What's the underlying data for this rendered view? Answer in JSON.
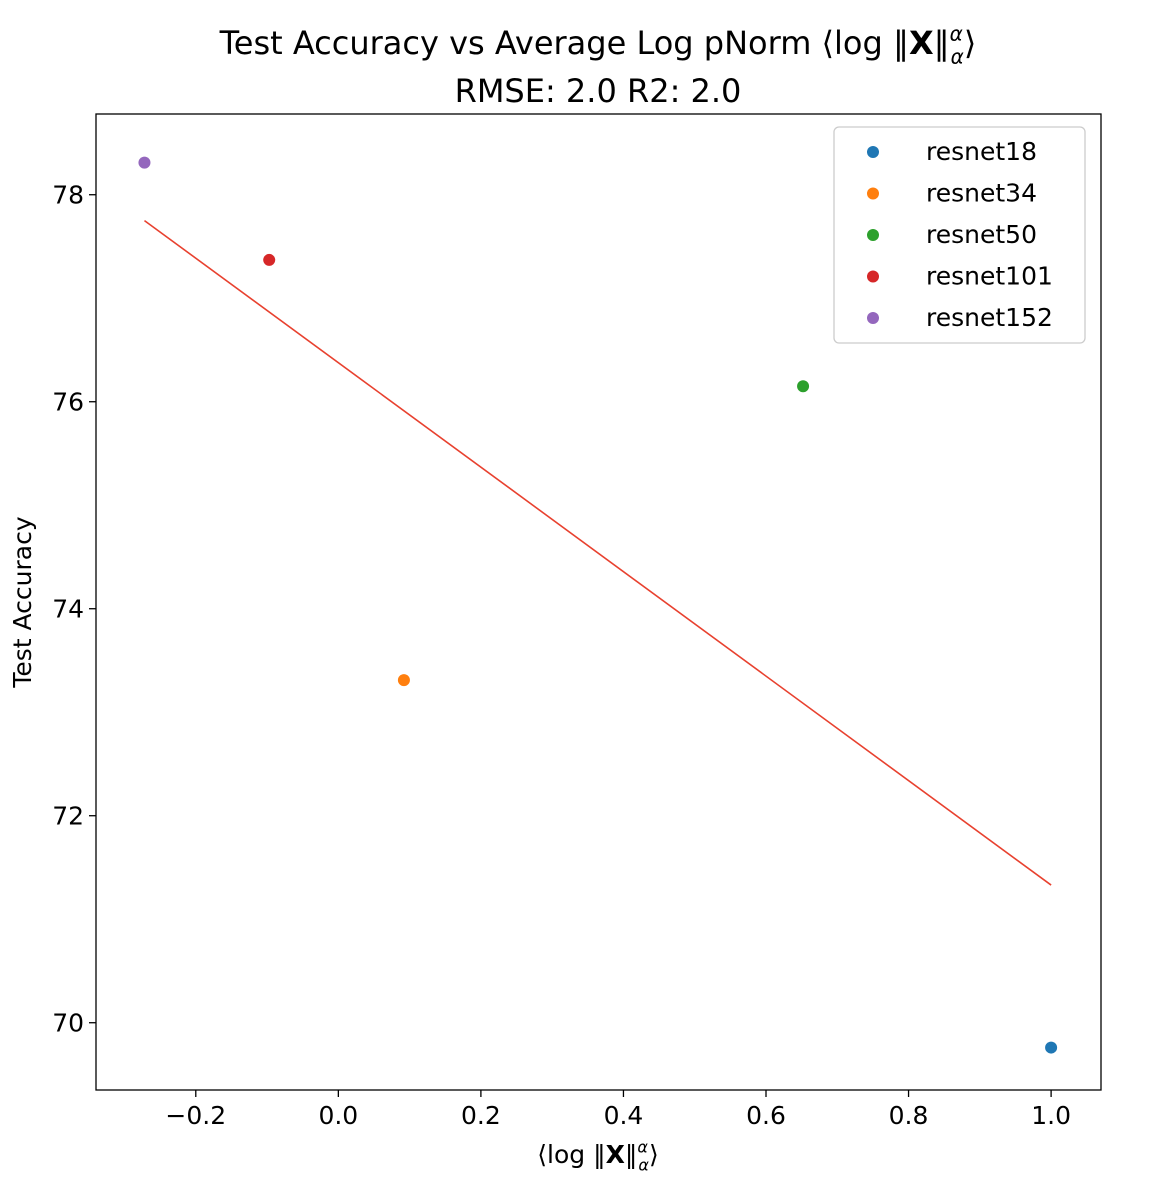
{
  "chart_data": {
    "type": "scatter",
    "title": "Test Accuracy vs Average Log pNorm ⟨log ‖X‖αα⟩",
    "title_parts": {
      "prefix": "Test Accuracy vs Average Log pNorm ⟨log ‖",
      "bold": "X",
      "mid": "‖",
      "sup": "α",
      "sub": "α",
      "suffix": "⟩"
    },
    "subtitle": "RMSE: 2.0   R2: 2.0",
    "xlabel": "⟨log ‖X‖αα⟩",
    "xlabel_parts": {
      "prefix": "⟨log ‖",
      "bold": "X",
      "mid": "‖",
      "sup": "α",
      "sub": "α",
      "suffix": "⟩"
    },
    "ylabel": "Test Accuracy",
    "xlim": [
      -0.34,
      1.07
    ],
    "ylim": [
      69.35,
      78.78
    ],
    "xticks": [
      -0.2,
      0.0,
      0.2,
      0.4,
      0.6,
      0.8,
      1.0
    ],
    "xtick_labels": [
      "−0.2",
      "0.0",
      "0.2",
      "0.4",
      "0.6",
      "0.8",
      "1.0"
    ],
    "yticks": [
      70,
      72,
      74,
      76,
      78
    ],
    "ytick_labels": [
      "70",
      "72",
      "74",
      "76",
      "78"
    ],
    "grid": false,
    "legend_position": "top-right",
    "series": [
      {
        "name": "resnet18",
        "color": "#1f77b4",
        "points": [
          [
            1.0,
            69.76
          ]
        ]
      },
      {
        "name": "resnet34",
        "color": "#ff7f0e",
        "points": [
          [
            0.092,
            73.31
          ]
        ]
      },
      {
        "name": "resnet50",
        "color": "#2ca02c",
        "points": [
          [
            0.652,
            76.15
          ]
        ]
      },
      {
        "name": "resnet101",
        "color": "#d62728",
        "points": [
          [
            -0.097,
            77.37
          ]
        ]
      },
      {
        "name": "resnet152",
        "color": "#9467bd",
        "points": [
          [
            -0.272,
            78.31
          ]
        ]
      }
    ],
    "fit_line": {
      "color": "#e8412f",
      "points": [
        [
          -0.272,
          77.75
        ],
        [
          1.0,
          71.33
        ]
      ]
    }
  }
}
